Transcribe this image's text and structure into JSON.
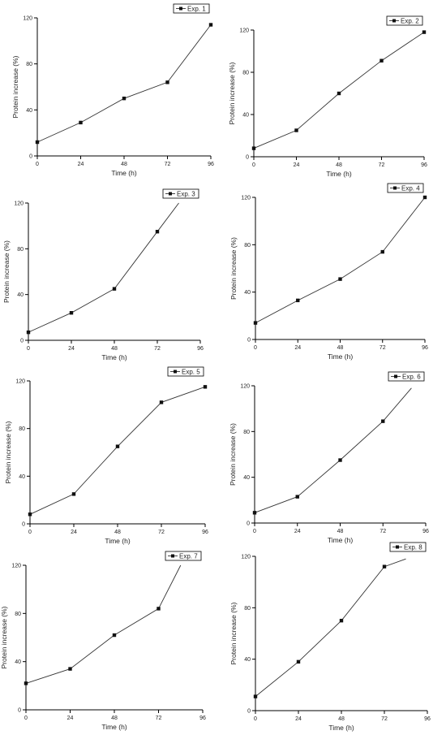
{
  "chart_data": [
    {
      "type": "line",
      "series": [
        {
          "name": "Exp. 1",
          "x": [
            0,
            24,
            48,
            72,
            96
          ],
          "y": [
            12,
            29,
            50,
            64,
            114
          ]
        }
      ],
      "xlabel": "Time (h)",
      "ylabel": "Protein increase (%)",
      "xlim": [
        0,
        96
      ],
      "ylim": [
        0,
        120
      ],
      "xticks": [
        "0",
        "24",
        "48",
        "72",
        "96"
      ],
      "yticks": [
        "0",
        "40",
        "80",
        "120"
      ],
      "legend": "top-right",
      "grid": false
    },
    {
      "type": "line",
      "series": [
        {
          "name": "Exp. 2",
          "x": [
            0,
            24,
            48,
            72,
            96
          ],
          "y": [
            8,
            25,
            60,
            91,
            118
          ]
        }
      ],
      "xlabel": "Time (h)",
      "ylabel": "Protein increase (%)",
      "xlim": [
        0,
        96
      ],
      "ylim": [
        0,
        120
      ],
      "xticks": [
        "0",
        "24",
        "48",
        "72",
        "96"
      ],
      "yticks": [
        "0",
        "40",
        "80",
        "120"
      ],
      "legend": "top-right",
      "grid": false
    },
    {
      "type": "line",
      "series": [
        {
          "name": "Exp. 3",
          "x": [
            0,
            24,
            48,
            72,
            84
          ],
          "y": [
            7,
            24,
            45,
            95,
            120
          ]
        }
      ],
      "xlabel": "Time (h)",
      "ylabel": "Protein increase (%)",
      "xlim": [
        0,
        96
      ],
      "ylim": [
        0,
        120
      ],
      "xticks": [
        "0",
        "24",
        "48",
        "72",
        "96"
      ],
      "yticks": [
        "0",
        "40",
        "80",
        "120"
      ],
      "legend": "top-right",
      "grid": false
    },
    {
      "type": "line",
      "series": [
        {
          "name": "Exp. 4",
          "x": [
            0,
            24,
            48,
            72,
            96
          ],
          "y": [
            14,
            33,
            51,
            74,
            120
          ]
        }
      ],
      "xlabel": "Time (h)",
      "ylabel": "Protein increase (%)",
      "xlim": [
        0,
        96
      ],
      "ylim": [
        0,
        120
      ],
      "xticks": [
        "0",
        "24",
        "48",
        "72",
        "96"
      ],
      "yticks": [
        "0",
        "40",
        "80",
        "120"
      ],
      "legend": "top-right",
      "grid": false
    },
    {
      "type": "line",
      "series": [
        {
          "name": "Exp. 5",
          "x": [
            0,
            24,
            48,
            72,
            96
          ],
          "y": [
            8,
            25,
            65,
            102,
            115
          ]
        }
      ],
      "xlabel": "Time (h)",
      "ylabel": "Protein increase (%)",
      "xlim": [
        0,
        96
      ],
      "ylim": [
        0,
        120
      ],
      "xticks": [
        "0",
        "24",
        "48",
        "72",
        "96"
      ],
      "yticks": [
        "0",
        "40",
        "80",
        "120"
      ],
      "legend": "top-right",
      "grid": false
    },
    {
      "type": "line",
      "series": [
        {
          "name": "Exp. 6",
          "x": [
            0,
            24,
            48,
            72,
            88
          ],
          "y": [
            9,
            23,
            55,
            89,
            118
          ]
        }
      ],
      "xlabel": "Time (h)",
      "ylabel": "Protein increase (%)",
      "xlim": [
        0,
        96
      ],
      "ylim": [
        0,
        120
      ],
      "xticks": [
        "0",
        "24",
        "48",
        "72",
        "96"
      ],
      "yticks": [
        "0",
        "40",
        "80",
        "120"
      ],
      "legend": "top-right",
      "grid": false
    },
    {
      "type": "line",
      "series": [
        {
          "name": "Exp. 7",
          "x": [
            0,
            24,
            48,
            72,
            84
          ],
          "y": [
            22,
            34,
            62,
            84,
            120
          ]
        }
      ],
      "xlabel": "Time (h)",
      "ylabel": "Protein increase (%)",
      "xlim": [
        0,
        96
      ],
      "ylim": [
        0,
        120
      ],
      "xticks": [
        "0",
        "24",
        "48",
        "72",
        "96"
      ],
      "yticks": [
        "0",
        "40",
        "80",
        "120"
      ],
      "legend": "top-right",
      "grid": false
    },
    {
      "type": "line",
      "series": [
        {
          "name": "Exp. 8",
          "x": [
            0,
            24,
            48,
            72,
            84
          ],
          "y": [
            11,
            38,
            70,
            112,
            118
          ]
        }
      ],
      "xlabel": "Time (h)",
      "ylabel": "Protein increase (%)",
      "xlim": [
        0,
        96
      ],
      "ylim": [
        0,
        120
      ],
      "xticks": [
        "0",
        "24",
        "48",
        "72",
        "96"
      ],
      "yticks": [
        "0",
        "40",
        "80",
        "120"
      ],
      "legend": "top-right",
      "grid": false
    }
  ]
}
